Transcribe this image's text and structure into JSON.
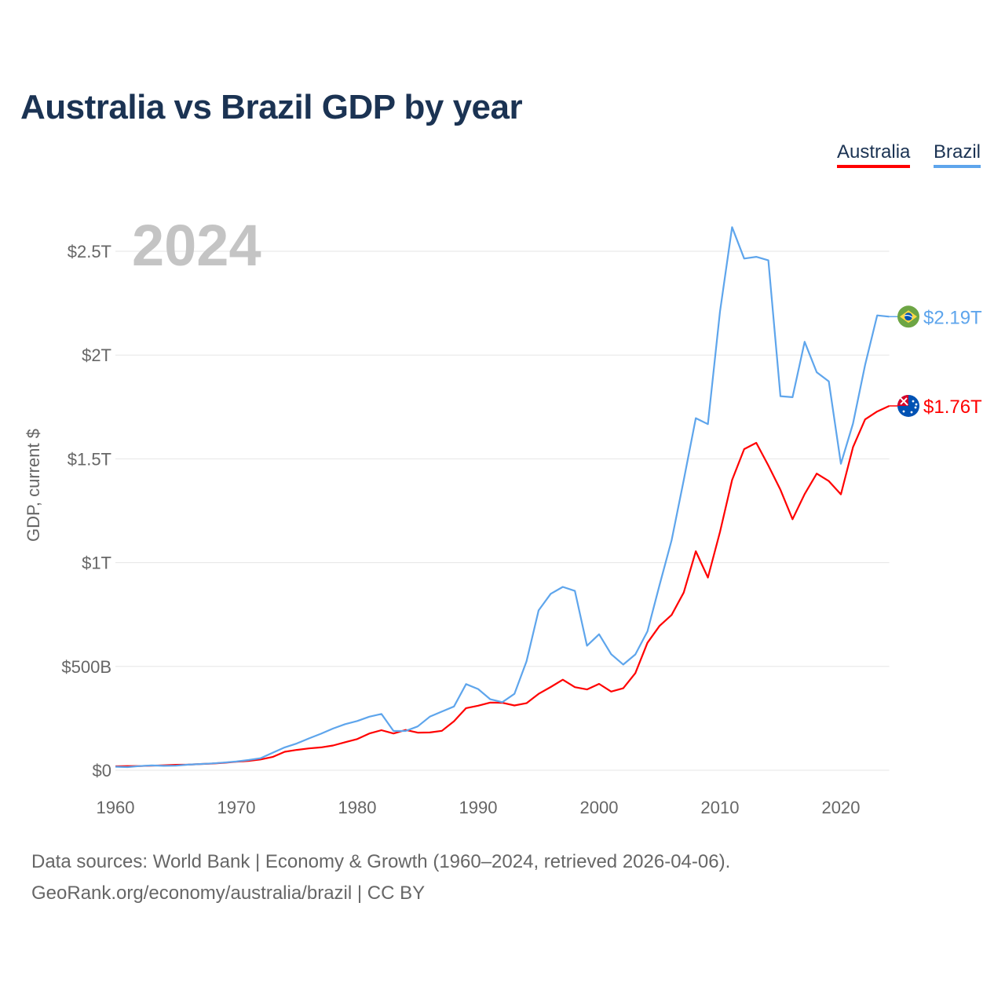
{
  "chart_data": {
    "type": "line",
    "title": "Australia vs Brazil GDP by year",
    "ylabel": "GDP, current $",
    "xlabel": "",
    "year_watermark": "2024",
    "xlim": [
      1960,
      2024
    ],
    "ylim_billions": [
      0,
      2750
    ],
    "x_ticks": [
      1960,
      1970,
      1980,
      1990,
      2000,
      2010,
      2020
    ],
    "y_ticks": [
      {
        "value": 0,
        "label": "$0"
      },
      {
        "value": 500,
        "label": "$500B"
      },
      {
        "value": 1000,
        "label": "$1T"
      },
      {
        "value": 1500,
        "label": "$1.5T"
      },
      {
        "value": 2000,
        "label": "$2T"
      },
      {
        "value": 2500,
        "label": "$2.5T"
      }
    ],
    "units": "billions USD",
    "grid": true,
    "legend_position": "top-right",
    "x": [
      1960,
      1961,
      1962,
      1963,
      1964,
      1965,
      1966,
      1967,
      1968,
      1969,
      1970,
      1971,
      1972,
      1973,
      1974,
      1975,
      1976,
      1977,
      1978,
      1979,
      1980,
      1981,
      1982,
      1983,
      1984,
      1985,
      1986,
      1987,
      1988,
      1989,
      1990,
      1991,
      1992,
      1993,
      1994,
      1995,
      1996,
      1997,
      1998,
      1999,
      2000,
      2001,
      2002,
      2003,
      2004,
      2005,
      2006,
      2007,
      2008,
      2009,
      2010,
      2011,
      2012,
      2013,
      2014,
      2015,
      2016,
      2017,
      2018,
      2019,
      2020,
      2021,
      2022,
      2023,
      2024
    ],
    "series": [
      {
        "name": "Australia",
        "color": "#ff0000",
        "end_label": "$1.76T",
        "flag": "australia-flag",
        "values": [
          19,
          20,
          20,
          22,
          24,
          26,
          27,
          30,
          32,
          36,
          41,
          45,
          52,
          64,
          89,
          98,
          105,
          110,
          119,
          135,
          150,
          177,
          193,
          177,
          194,
          181,
          182,
          190,
          236,
          299,
          311,
          326,
          325,
          312,
          323,
          368,
          401,
          436,
          400,
          389,
          416,
          379,
          395,
          468,
          614,
          695,
          748,
          856,
          1055,
          928,
          1148,
          1398,
          1547,
          1577,
          1468,
          1351,
          1209,
          1330,
          1429,
          1393,
          1329,
          1556,
          1690,
          1728,
          1755
        ]
      },
      {
        "name": "Brazil",
        "color": "#5ea5ec",
        "end_label": "$2.19T",
        "flag": "brazil-flag",
        "values": [
          17,
          15,
          20,
          23,
          21,
          22,
          27,
          30,
          33,
          37,
          42,
          49,
          58,
          84,
          110,
          129,
          153,
          176,
          201,
          222,
          237,
          258,
          271,
          189,
          189,
          211,
          258,
          283,
          307,
          415,
          391,
          342,
          328,
          368,
          525,
          770,
          850,
          883,
          864,
          600,
          655,
          559,
          509,
          558,
          669,
          892,
          1108,
          1397,
          1696,
          1667,
          2209,
          2616,
          2465,
          2473,
          2456,
          1802,
          1797,
          2064,
          1917,
          1873,
          1476,
          1670,
          1952,
          2191,
          2185
        ]
      }
    ]
  },
  "legend": {
    "australia": "Australia",
    "brazil": "Brazil"
  },
  "footer": {
    "line1": "Data sources: World Bank | Economy & Growth (1960–2024, retrieved 2026-04-06).",
    "line2": "GeoRank.org/economy/australia/brazil | CC BY"
  }
}
